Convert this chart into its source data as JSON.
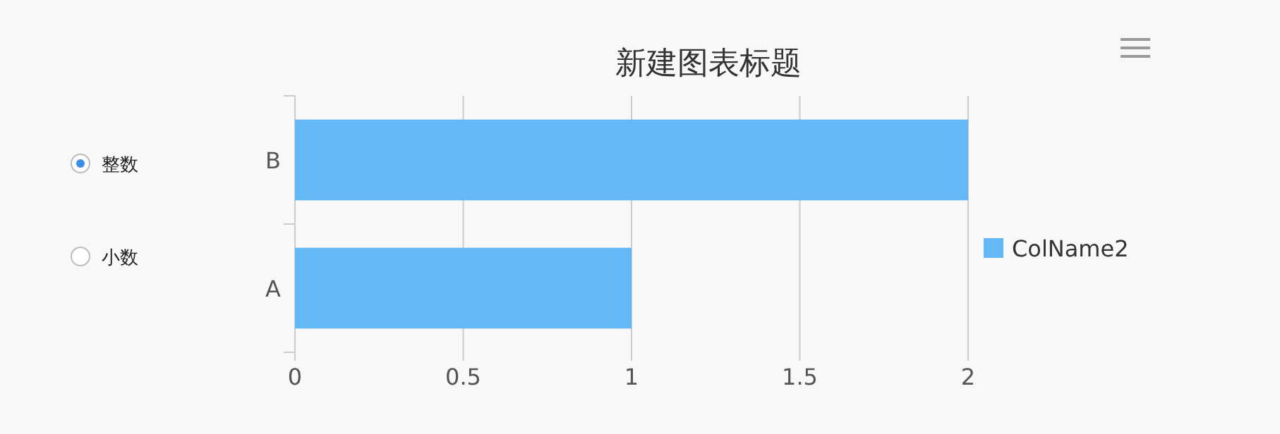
{
  "chart_data": {
    "type": "bar",
    "orientation": "horizontal",
    "title": "新建图表标题",
    "categories": [
      "B",
      "A"
    ],
    "series": [
      {
        "name": "ColName2",
        "color": "#63b8f5",
        "values": [
          2,
          1
        ]
      }
    ],
    "xlim": [
      0,
      2
    ],
    "xticks": [
      0,
      0.5,
      1,
      1.5,
      2
    ],
    "grid": "x",
    "legend": "right",
    "annotations": [
      "整数",
      "小数"
    ]
  }
}
